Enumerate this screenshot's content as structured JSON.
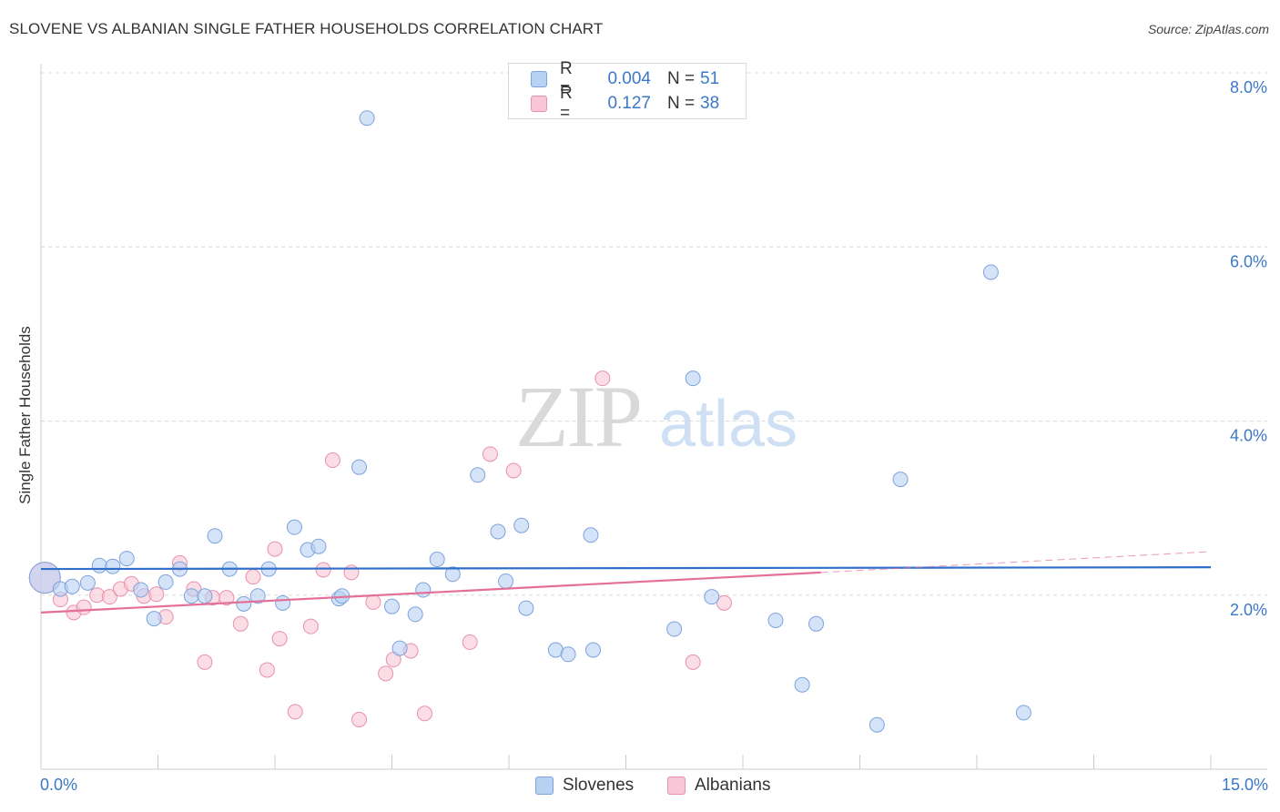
{
  "title": "SLOVENE VS ALBANIAN SINGLE FATHER HOUSEHOLDS CORRELATION CHART",
  "source": "Source: ZipAtlas.com",
  "watermark": {
    "zip": "ZIP",
    "atlas": "atlas"
  },
  "legend": {
    "row1": {
      "r_label": "R =",
      "r_value": "0.004",
      "n_label": "N =",
      "n_value": "51"
    },
    "row2": {
      "r_label": "R =",
      "r_value": "0.127",
      "n_label": "N =",
      "n_value": "38"
    }
  },
  "colors": {
    "slovenes_fill": "#b8d0f2",
    "slovenes_stroke": "#7da3dc",
    "slovenes_line": "#2f6fcb",
    "albanians_fill": "#f8c6d6",
    "albanians_stroke": "#e891ad",
    "albanians_line": "#e46f98",
    "grid": "#d8d8d8",
    "tick_label": "#3b78c9"
  },
  "chart_data": {
    "type": "scatter",
    "title": "SLOVENE VS ALBANIAN SINGLE FATHER HOUSEHOLDS CORRELATION CHART",
    "xlabel": "",
    "ylabel": "Single Father Households",
    "xlim": [
      0,
      15
    ],
    "ylim": [
      0,
      8
    ],
    "x_tick_labels": [
      "0.0%",
      "15.0%"
    ],
    "y_ticks": [
      2,
      4,
      6,
      8
    ],
    "y_tick_labels": [
      "2.0%",
      "4.0%",
      "6.0%",
      "8.0%"
    ],
    "grid": true,
    "legend_labels": [
      "Slovenes",
      "Albanians"
    ],
    "series": [
      {
        "name": "Slovenes",
        "r": 0.004,
        "n": 51,
        "trend": {
          "x": [
            0,
            15
          ],
          "y": [
            2.3,
            2.32
          ]
        },
        "points": [
          {
            "x": 0.05,
            "y": 2.2,
            "size": "large"
          },
          {
            "x": 0.25,
            "y": 2.07
          },
          {
            "x": 0.4,
            "y": 2.1
          },
          {
            "x": 0.6,
            "y": 2.14
          },
          {
            "x": 0.75,
            "y": 2.34
          },
          {
            "x": 0.92,
            "y": 2.33
          },
          {
            "x": 1.1,
            "y": 2.42
          },
          {
            "x": 1.28,
            "y": 2.06
          },
          {
            "x": 1.45,
            "y": 1.73
          },
          {
            "x": 1.6,
            "y": 2.15
          },
          {
            "x": 1.78,
            "y": 2.3
          },
          {
            "x": 1.93,
            "y": 1.99
          },
          {
            "x": 2.1,
            "y": 1.99
          },
          {
            "x": 2.23,
            "y": 2.68
          },
          {
            "x": 2.42,
            "y": 2.3
          },
          {
            "x": 2.6,
            "y": 1.9
          },
          {
            "x": 2.78,
            "y": 1.99
          },
          {
            "x": 2.92,
            "y": 2.3
          },
          {
            "x": 3.1,
            "y": 1.91
          },
          {
            "x": 3.25,
            "y": 2.78
          },
          {
            "x": 3.42,
            "y": 2.52
          },
          {
            "x": 3.56,
            "y": 2.56
          },
          {
            "x": 3.82,
            "y": 1.96
          },
          {
            "x": 3.86,
            "y": 1.99
          },
          {
            "x": 4.08,
            "y": 3.47
          },
          {
            "x": 4.18,
            "y": 7.48
          },
          {
            "x": 4.5,
            "y": 1.87
          },
          {
            "x": 4.6,
            "y": 1.39
          },
          {
            "x": 4.8,
            "y": 1.78
          },
          {
            "x": 4.9,
            "y": 2.06
          },
          {
            "x": 5.08,
            "y": 2.41
          },
          {
            "x": 5.28,
            "y": 2.24
          },
          {
            "x": 5.6,
            "y": 3.38
          },
          {
            "x": 5.86,
            "y": 2.73
          },
          {
            "x": 5.96,
            "y": 2.16
          },
          {
            "x": 6.16,
            "y": 2.8
          },
          {
            "x": 6.22,
            "y": 1.85
          },
          {
            "x": 6.6,
            "y": 1.37
          },
          {
            "x": 6.76,
            "y": 1.32
          },
          {
            "x": 7.05,
            "y": 2.69
          },
          {
            "x": 7.08,
            "y": 1.37
          },
          {
            "x": 8.12,
            "y": 1.61
          },
          {
            "x": 8.36,
            "y": 4.49
          },
          {
            "x": 8.6,
            "y": 1.98
          },
          {
            "x": 9.42,
            "y": 1.71
          },
          {
            "x": 9.76,
            "y": 0.97
          },
          {
            "x": 9.94,
            "y": 1.67
          },
          {
            "x": 10.72,
            "y": 0.51
          },
          {
            "x": 11.02,
            "y": 3.33
          },
          {
            "x": 12.18,
            "y": 5.71
          },
          {
            "x": 12.6,
            "y": 0.65
          }
        ]
      },
      {
        "name": "Albanians",
        "r": 0.127,
        "n": 38,
        "trend": {
          "x": [
            0,
            10.0
          ],
          "y": [
            1.8,
            2.26
          ]
        },
        "trend_extended": {
          "x": [
            10.0,
            15
          ],
          "y": [
            2.26,
            2.5
          ]
        },
        "points": [
          {
            "x": 0.05,
            "y": 2.2,
            "size": "large"
          },
          {
            "x": 0.25,
            "y": 1.95
          },
          {
            "x": 0.42,
            "y": 1.8
          },
          {
            "x": 0.55,
            "y": 1.86
          },
          {
            "x": 0.72,
            "y": 2.0
          },
          {
            "x": 0.88,
            "y": 1.98
          },
          {
            "x": 1.02,
            "y": 2.07
          },
          {
            "x": 1.16,
            "y": 2.13
          },
          {
            "x": 1.32,
            "y": 1.99
          },
          {
            "x": 1.48,
            "y": 2.01
          },
          {
            "x": 1.6,
            "y": 1.75
          },
          {
            "x": 1.78,
            "y": 2.37
          },
          {
            "x": 1.96,
            "y": 2.07
          },
          {
            "x": 2.1,
            "y": 1.23
          },
          {
            "x": 2.2,
            "y": 1.97
          },
          {
            "x": 2.38,
            "y": 1.97
          },
          {
            "x": 2.56,
            "y": 1.67
          },
          {
            "x": 2.72,
            "y": 2.21
          },
          {
            "x": 2.9,
            "y": 1.14
          },
          {
            "x": 3.0,
            "y": 2.53
          },
          {
            "x": 3.06,
            "y": 1.5
          },
          {
            "x": 3.26,
            "y": 0.66
          },
          {
            "x": 3.46,
            "y": 1.64
          },
          {
            "x": 3.62,
            "y": 2.29
          },
          {
            "x": 3.74,
            "y": 3.55
          },
          {
            "x": 3.98,
            "y": 2.26
          },
          {
            "x": 4.08,
            "y": 0.57
          },
          {
            "x": 4.26,
            "y": 1.92
          },
          {
            "x": 4.42,
            "y": 1.1
          },
          {
            "x": 4.52,
            "y": 1.26
          },
          {
            "x": 4.74,
            "y": 1.36
          },
          {
            "x": 4.92,
            "y": 0.64
          },
          {
            "x": 5.5,
            "y": 1.46
          },
          {
            "x": 5.76,
            "y": 3.62
          },
          {
            "x": 6.06,
            "y": 3.43
          },
          {
            "x": 7.2,
            "y": 4.49
          },
          {
            "x": 8.36,
            "y": 1.23
          },
          {
            "x": 8.76,
            "y": 1.91
          }
        ]
      }
    ]
  }
}
